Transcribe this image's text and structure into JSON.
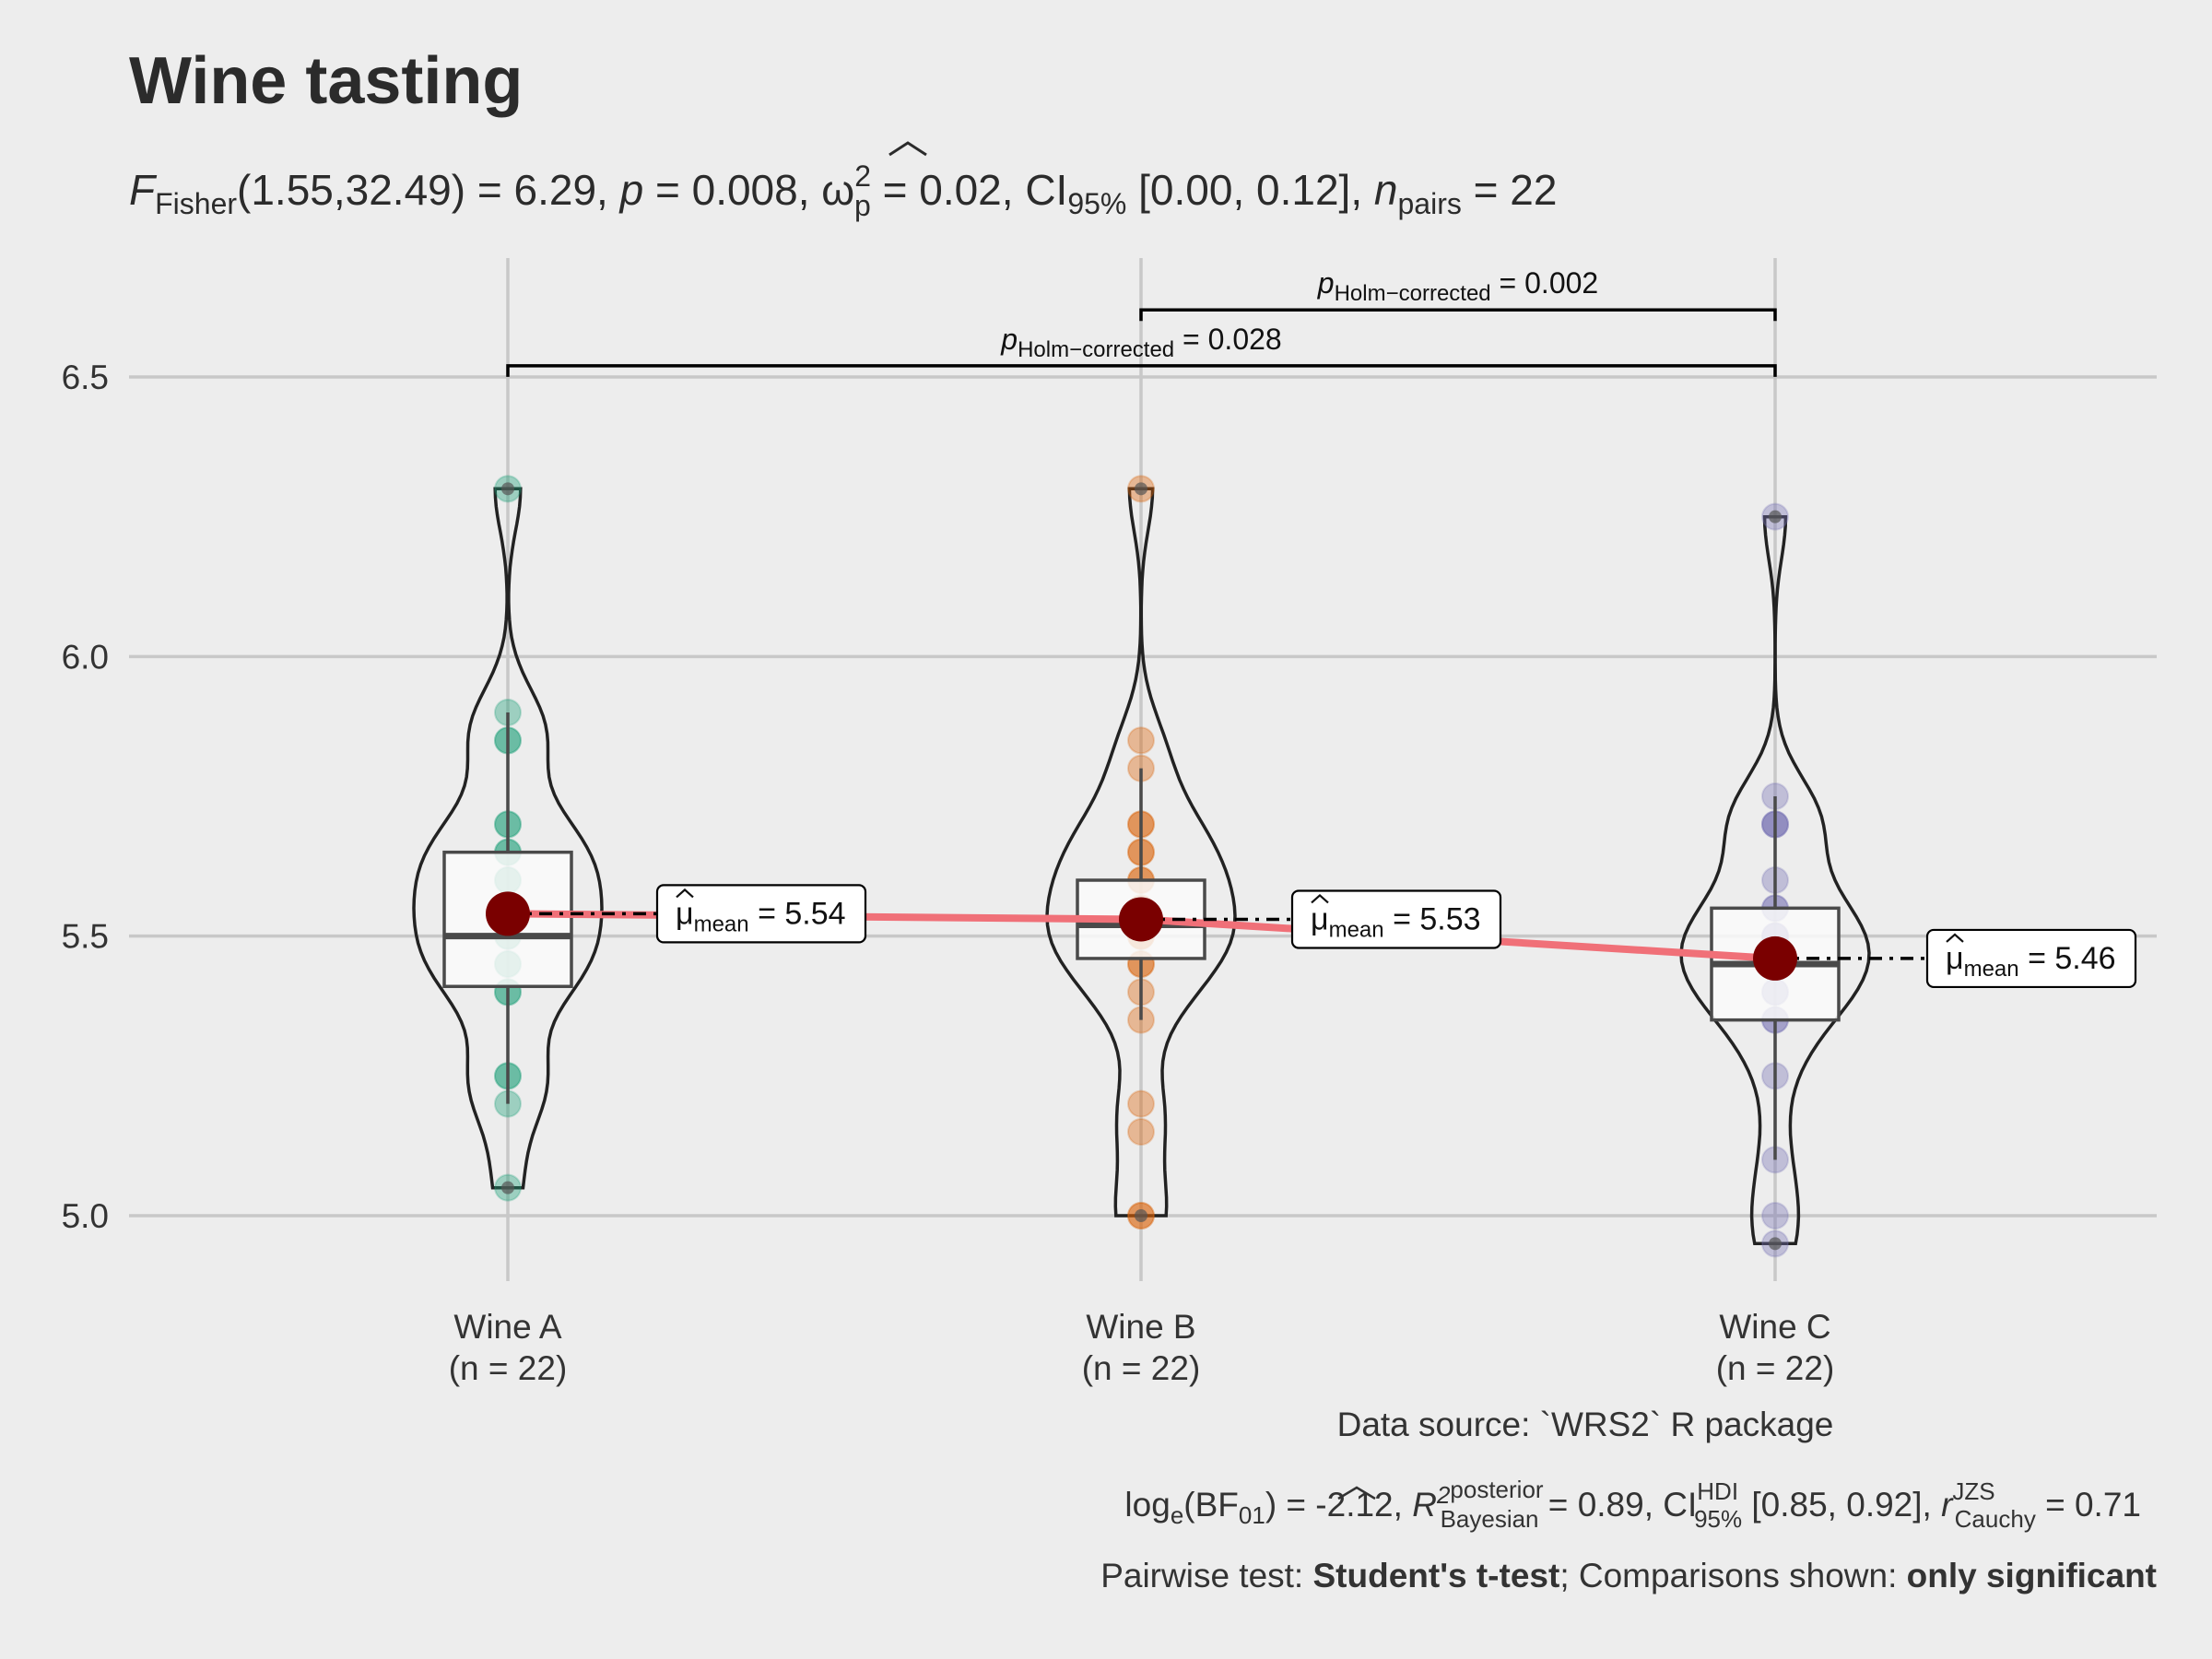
{
  "title": "Wine tasting",
  "subtitle": {
    "stat_symbol": "F",
    "stat_subscript": "Fisher",
    "stat_value": "(1.55,32.49) = 6.29, ",
    "p_symbol": "p",
    "p_value": " = 0.008, ",
    "es_symbol": "ω",
    "es_superscript": "2",
    "es_subscript": "p",
    "es_value": " = 0.02, CI",
    "ci_subscript": "95%",
    "ci_value": " [0.00, 0.12], ",
    "n_symbol": "n",
    "n_subscript": "pairs",
    "n_value": " = 22"
  },
  "chart_data": {
    "type": "violin",
    "xlabel": "",
    "ylabel": "",
    "ylim": [
      4.92,
      6.72
    ],
    "yticks": [
      5.0,
      5.5,
      6.0,
      6.5
    ],
    "ytick_labels": [
      "5.0",
      "5.5",
      "6.0",
      "6.5"
    ],
    "grid": true,
    "categories": [
      "Wine A",
      "Wine B",
      "Wine C"
    ],
    "category_labels": [
      {
        "name": "Wine A",
        "n": "(n = 22)"
      },
      {
        "name": "Wine B",
        "n": "(n = 22)"
      },
      {
        "name": "Wine C",
        "n": "(n = 22)"
      }
    ],
    "series": [
      {
        "name": "Wine A",
        "color": "#1b9e77",
        "points": [
          5.05,
          5.2,
          5.25,
          5.25,
          5.4,
          5.4,
          5.45,
          5.45,
          5.5,
          5.5,
          5.55,
          5.55,
          5.6,
          5.6,
          5.65,
          5.65,
          5.7,
          5.7,
          5.85,
          5.85,
          5.9,
          6.3
        ],
        "mean": 5.54,
        "mean_label": "5.54",
        "box": {
          "q1": 5.41,
          "median": 5.5,
          "q3": 5.65,
          "whisker_low": 5.2,
          "whisker_high": 5.9
        },
        "violin_range": [
          5.05,
          6.3
        ]
      },
      {
        "name": "Wine B",
        "color": "#d95f02",
        "points": [
          5.0,
          5.0,
          5.15,
          5.2,
          5.35,
          5.4,
          5.45,
          5.45,
          5.5,
          5.5,
          5.5,
          5.55,
          5.55,
          5.6,
          5.6,
          5.65,
          5.65,
          5.7,
          5.7,
          5.8,
          5.85,
          6.3
        ],
        "mean": 5.53,
        "mean_label": "5.53",
        "box": {
          "q1": 5.46,
          "median": 5.52,
          "q3": 5.6,
          "whisker_low": 5.35,
          "whisker_high": 5.8
        },
        "violin_range": [
          5.0,
          6.3
        ]
      },
      {
        "name": "Wine C",
        "color": "#7570b3",
        "points": [
          4.95,
          5.0,
          5.1,
          5.25,
          5.35,
          5.35,
          5.4,
          5.4,
          5.45,
          5.45,
          5.45,
          5.5,
          5.5,
          5.5,
          5.55,
          5.55,
          5.6,
          5.7,
          5.7,
          5.7,
          5.75,
          6.25
        ],
        "mean": 5.46,
        "mean_label": "5.46",
        "box": {
          "q1": 5.35,
          "median": 5.45,
          "q3": 5.55,
          "whisker_low": 5.1,
          "whisker_high": 5.75
        },
        "violin_range": [
          4.95,
          6.25
        ]
      }
    ],
    "mean_symbol": "μ",
    "mean_subscript": "mean",
    "mean_prefix": " = ",
    "comparisons": [
      {
        "from": "Wine B",
        "to": "Wine C",
        "y": 6.62,
        "p_symbol": "p",
        "p_subscript": "Holm−corrected",
        "p_value": " = 0.002"
      },
      {
        "from": "Wine A",
        "to": "Wine C",
        "y": 6.52,
        "p_symbol": "p",
        "p_subscript": "Holm−corrected",
        "p_value": " = 0.028"
      }
    ]
  },
  "caption": {
    "source": "Data source: `WRS2` R package",
    "bayes": {
      "log": "log",
      "log_sub": "e",
      "bf": "(BF",
      "bf_sub": "01",
      "bf_value": ") = -2.12, ",
      "r2": "R",
      "r2_sup": "2",
      "r2_posterior": "posterior",
      "r2_bayesian": "Bayesian",
      "r2_value": " = 0.89, CI",
      "ci_sup": "HDI",
      "ci_sub": "95%",
      "ci_value": " [0.85, 0.92], ",
      "r": "r",
      "r_sup": "JZS",
      "r_sub": "Cauchy",
      "r_value": " = 0.71"
    },
    "pairwise": {
      "test_label": "Pairwise test: ",
      "test_name": "Student's t-test",
      "sep": "; Comparisons shown: ",
      "shown": "only significant"
    }
  }
}
